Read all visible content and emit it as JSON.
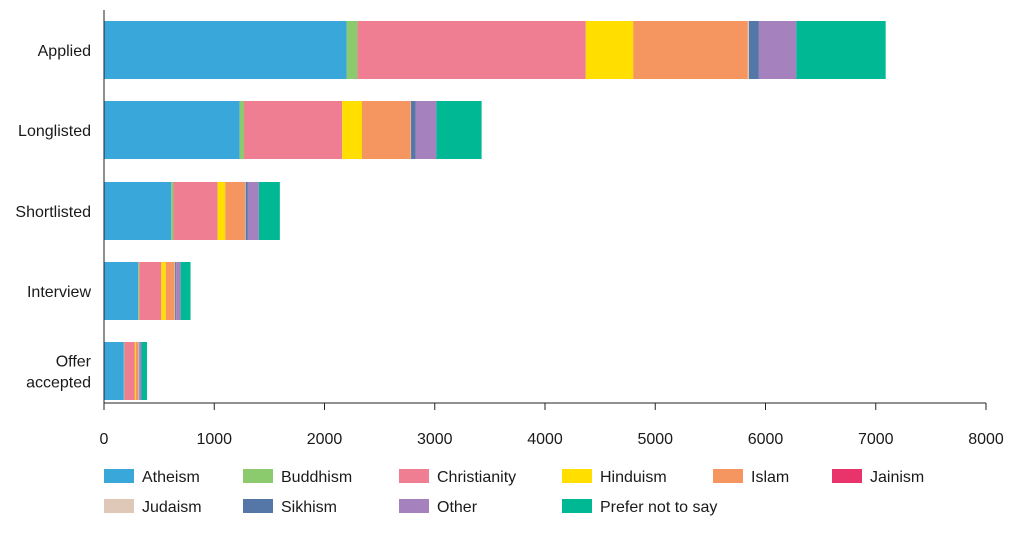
{
  "chart_data": {
    "type": "bar",
    "orientation": "horizontal",
    "stacked": true,
    "categories": [
      "Applied",
      "Longlisted",
      "Shortlisted",
      "Interview",
      "Offer accepted"
    ],
    "category_lines": [
      [
        "Applied"
      ],
      [
        "Longlisted"
      ],
      [
        "Shortlisted"
      ],
      [
        "Interview"
      ],
      [
        "Offer",
        "accepted"
      ]
    ],
    "series": [
      {
        "name": "Atheism",
        "color": "#3aa7db",
        "values": [
          2200,
          1230,
          610,
          310,
          180
        ]
      },
      {
        "name": "Buddhism",
        "color": "#8cca6e",
        "values": [
          100,
          40,
          20,
          10,
          5
        ]
      },
      {
        "name": "Christianity",
        "color": "#f07e92",
        "values": [
          2070,
          890,
          400,
          200,
          95
        ]
      },
      {
        "name": "Hinduism",
        "color": "#ffde00",
        "values": [
          430,
          180,
          70,
          40,
          10
        ]
      },
      {
        "name": "Islam",
        "color": "#f5955f",
        "values": [
          1040,
          440,
          180,
          80,
          20
        ]
      },
      {
        "name": "Jainism",
        "color": "#e8346b",
        "values": [
          0,
          0,
          0,
          0,
          0
        ]
      },
      {
        "name": "Judaism",
        "color": "#dfc8b8",
        "values": [
          10,
          5,
          5,
          5,
          5
        ]
      },
      {
        "name": "Sikhism",
        "color": "#5577a8",
        "values": [
          90,
          40,
          20,
          10,
          5
        ]
      },
      {
        "name": "Other",
        "color": "#a582bd",
        "values": [
          340,
          190,
          100,
          40,
          20
        ]
      },
      {
        "name": "Prefer not to say",
        "color": "#00b893",
        "values": [
          810,
          410,
          190,
          90,
          50
        ]
      }
    ],
    "xlim": [
      0,
      8000
    ],
    "xticks": [
      0,
      1000,
      2000,
      3000,
      4000,
      5000,
      6000,
      7000,
      8000
    ],
    "xlabel": "",
    "ylabel": "",
    "title": "",
    "grid": false,
    "legend_position": "bottom"
  }
}
